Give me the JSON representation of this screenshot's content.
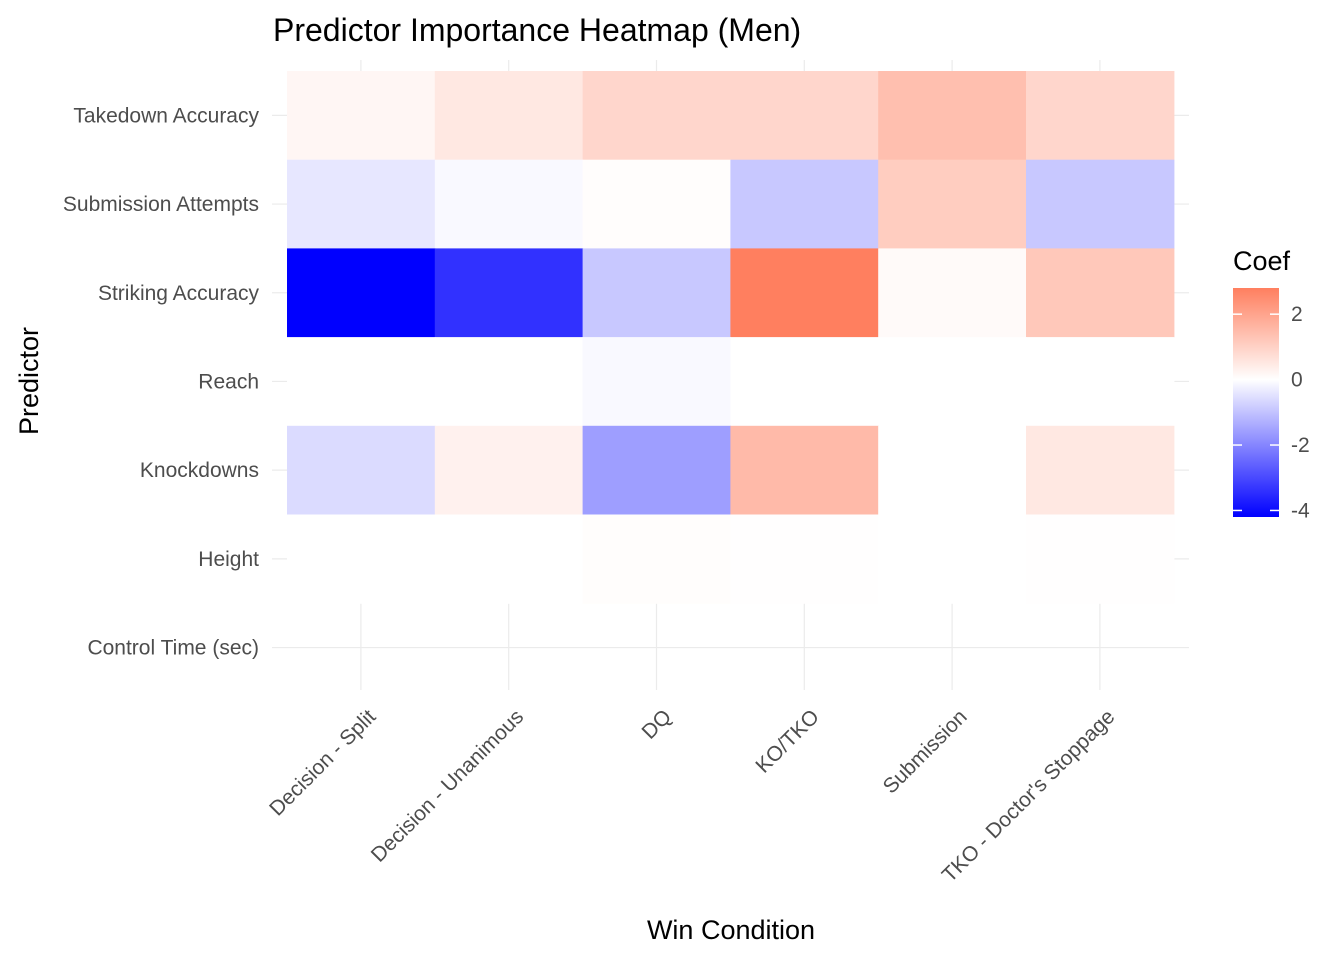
{
  "chart_data": {
    "type": "heatmap",
    "title": "Predictor Importance Heatmap (Men)",
    "xlabel": "Win Condition",
    "ylabel": "Predictor",
    "x_categories": [
      "Decision - Split",
      "Decision - Unanimous",
      "DQ",
      "KO/TKO",
      "Submission",
      "TKO - Doctor's Stoppage"
    ],
    "y_categories": [
      "Takedown Accuracy",
      "Submission Attempts",
      "Striking Accuracy",
      "Reach",
      "Knockdowns",
      "Height",
      "Control Time (sec)"
    ],
    "values": [
      [
        0.2,
        0.5,
        0.9,
        0.9,
        1.4,
        0.9
      ],
      [
        -0.4,
        -0.1,
        0.05,
        -0.9,
        1.1,
        -0.9
      ],
      [
        -4.2,
        -3.4,
        -0.9,
        2.8,
        0.1,
        1.2
      ],
      [
        0.0,
        0.0,
        -0.1,
        0.0,
        0.0,
        0.0
      ],
      [
        -0.6,
        0.3,
        -1.6,
        1.5,
        0.0,
        0.5
      ],
      [
        0.0,
        0.0,
        0.05,
        0.02,
        0.0,
        0.02
      ],
      [
        0.0,
        0.0,
        0.0,
        0.0,
        0.0,
        0.0
      ]
    ],
    "missing": [
      [
        6,
        0
      ],
      [
        6,
        1
      ],
      [
        6,
        2
      ],
      [
        6,
        3
      ],
      [
        6,
        4
      ],
      [
        6,
        5
      ]
    ],
    "grid": true,
    "color_scale": {
      "low": "#0000ff",
      "mid": "#ffffff",
      "high": "#ff7f5f",
      "min": -4.2,
      "max": 2.8,
      "midpoint": 0
    },
    "legend": {
      "title": "Coef",
      "ticks": [
        "2",
        "0",
        "-2",
        "-4"
      ],
      "tick_values": [
        2,
        0,
        -2,
        -4
      ],
      "placement": "right"
    }
  }
}
